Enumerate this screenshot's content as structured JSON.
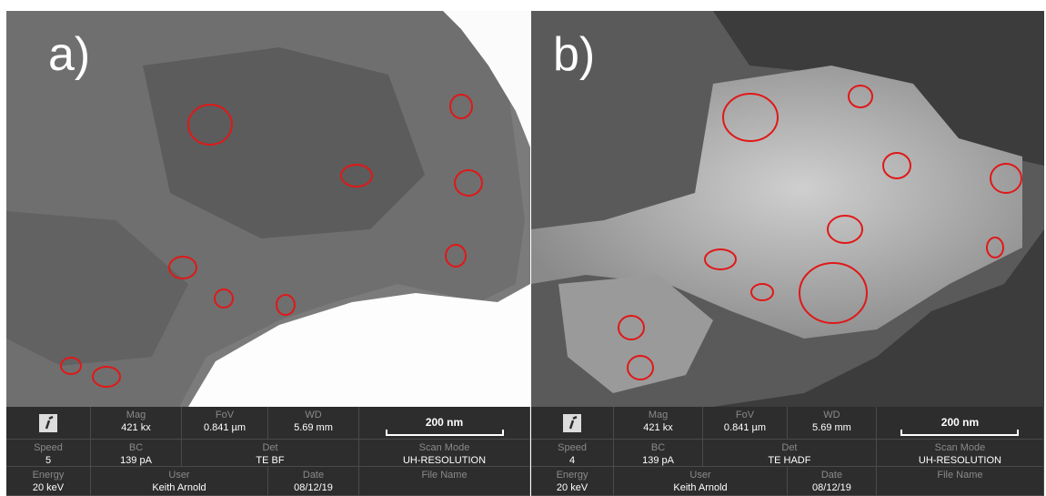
{
  "panels": [
    {
      "label": "a)",
      "info": [
        [
          {
            "label": "Mag",
            "value": "421 kx"
          },
          {
            "label": "FoV",
            "value": "0.841 µm"
          },
          {
            "label": "WD",
            "value": "5.69 mm"
          },
          {
            "value": "200 nm"
          }
        ],
        [
          {
            "label": "Speed",
            "value": "5"
          },
          {
            "label": "BC",
            "value": "139 pA"
          },
          {
            "label": "Det",
            "value": "TE BF"
          },
          {
            "label": "Scan Mode",
            "value": "UH-RESOLUTION"
          }
        ],
        [
          {
            "label": "Energy",
            "value": "20 keV"
          },
          {
            "label": "User",
            "value": "Keith Arnold"
          },
          {
            "label": "Date",
            "value": "08/12/19"
          },
          {
            "label": "File Name"
          }
        ]
      ]
    },
    {
      "label": "b)",
      "info": [
        [
          {
            "label": "Mag",
            "value": "421 kx"
          },
          {
            "label": "FoV",
            "value": "0.841 µm"
          },
          {
            "label": "WD",
            "value": "5.69 mm"
          },
          {
            "value": "200 nm"
          }
        ],
        [
          {
            "label": "Speed",
            "value": "4"
          },
          {
            "label": "BC",
            "value": "139 pA"
          },
          {
            "label": "Det",
            "value": "TE HADF"
          },
          {
            "label": "Scan Mode",
            "value": "UH-RESOLUTION"
          }
        ],
        [
          {
            "label": "Energy",
            "value": "20 keV"
          },
          {
            "label": "User",
            "value": "Keith Arnold"
          },
          {
            "label": "Date",
            "value": "08/12/19"
          },
          {
            "label": "File Name"
          }
        ]
      ]
    }
  ]
}
